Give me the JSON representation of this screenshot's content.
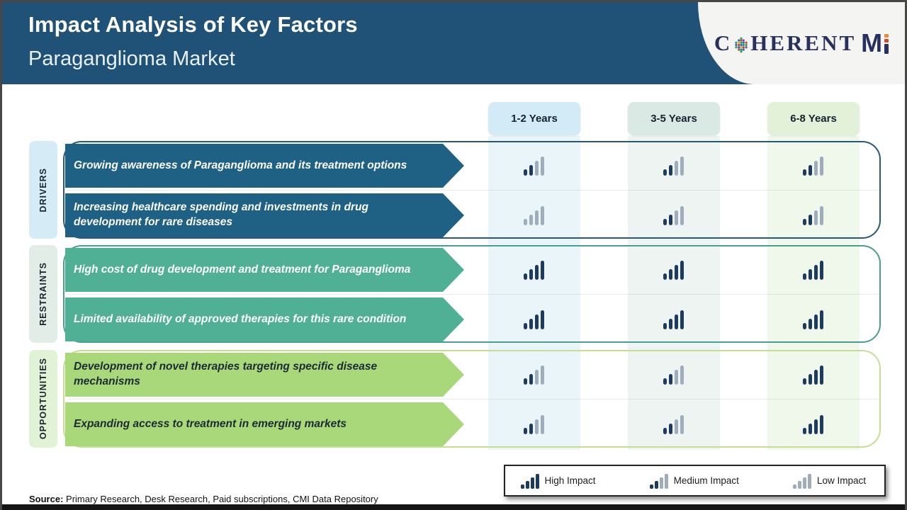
{
  "header": {
    "title": "Impact Analysis of Key Factors",
    "subtitle": "Paraganglioma Market",
    "logo": {
      "prefix": "C",
      "middle": "HERENT",
      "m": "M"
    }
  },
  "columns": [
    {
      "label": "1-2 Years",
      "chip_bg": "#D2EBF6",
      "band_bg": "#EAF5FA"
    },
    {
      "label": "3-5 Years",
      "chip_bg": "#DBE9E4",
      "band_bg": "#EDF4F1"
    },
    {
      "label": "6-8 Years",
      "chip_bg": "#E2F1D8",
      "band_bg": "#F0F7EB"
    }
  ],
  "groups": [
    {
      "label": "DRIVERS",
      "label_bg": "#D5ECF7",
      "arrow_bg": "#1E6185",
      "arrow_text_color": "#FFFFFF",
      "border_color": "#27587B",
      "rows": [
        {
          "text": "Growing awareness of Paraganglioma and its treatment options",
          "impacts": [
            "medium",
            "medium",
            "medium"
          ]
        },
        {
          "text": "Increasing healthcare spending and investments in drug development for rare diseases",
          "impacts": [
            "low",
            "medium",
            "medium"
          ]
        }
      ]
    },
    {
      "label": "RESTRAINTS",
      "label_bg": "#E2EDE8",
      "arrow_bg": "#4FB096",
      "arrow_text_color": "#FFFFFF",
      "border_color": "#4A9E8C",
      "rows": [
        {
          "text": "High cost of drug development and treatment for Paraganglioma",
          "impacts": [
            "high",
            "high",
            "high"
          ]
        },
        {
          "text": "Limited availability of approved therapies for this rare condition",
          "impacts": [
            "high",
            "high",
            "high"
          ]
        }
      ]
    },
    {
      "label": "OPPORTUNITIES",
      "label_bg": "#E2F2D7",
      "arrow_bg": "#A8D87A",
      "arrow_text_color": "#1E2A33",
      "border_color": "#C8DC96",
      "rows": [
        {
          "text": "Development of novel therapies targeting specific disease mechanisms",
          "impacts": [
            "medium",
            "medium",
            "high"
          ]
        },
        {
          "text": "Expanding access to treatment in emerging markets",
          "impacts": [
            "medium",
            "medium",
            "high"
          ]
        }
      ]
    }
  ],
  "impact_levels": {
    "high": {
      "label": "High Impact",
      "bars": [
        "dark",
        "dark",
        "dark",
        "dark"
      ]
    },
    "medium": {
      "label": "Medium Impact",
      "bars": [
        "dark",
        "dark",
        "gray",
        "gray"
      ]
    },
    "low": {
      "label": "Low Impact",
      "bars": [
        "gray",
        "gray",
        "gray",
        "gray"
      ]
    }
  },
  "legend_order": [
    "high",
    "medium",
    "low"
  ],
  "source": {
    "prefix": "Source:",
    "text": "Primary Research, Desk Research, Paid subscriptions, CMI Data Repository"
  },
  "colors": {
    "header_bg": "#1F5276",
    "bar_dark": "#1C3B5E",
    "bar_gray": "#9FACBC"
  },
  "chart_data": {
    "type": "heatmap",
    "title": "Impact Analysis of Key Factors - Paraganglioma Market",
    "x_categories": [
      "1-2 Years",
      "3-5 Years",
      "6-8 Years"
    ],
    "y_categories": [
      "Growing awareness of Paraganglioma and its treatment options",
      "Increasing healthcare spending and investments in drug development for rare diseases",
      "High cost of drug development and treatment for Paraganglioma",
      "Limited availability of approved therapies for this rare condition",
      "Development of novel therapies targeting specific disease mechanisms",
      "Expanding access to treatment in emerging markets"
    ],
    "y_groups": [
      "Drivers",
      "Drivers",
      "Restraints",
      "Restraints",
      "Opportunities",
      "Opportunities"
    ],
    "values": [
      [
        "Medium",
        "Medium",
        "Medium"
      ],
      [
        "Low",
        "Medium",
        "Medium"
      ],
      [
        "High",
        "High",
        "High"
      ],
      [
        "High",
        "High",
        "High"
      ],
      [
        "Medium",
        "Medium",
        "High"
      ],
      [
        "Medium",
        "Medium",
        "High"
      ]
    ],
    "legend_entries": [
      "High Impact",
      "Medium Impact",
      "Low Impact"
    ],
    "legend_position": "bottom-right"
  }
}
